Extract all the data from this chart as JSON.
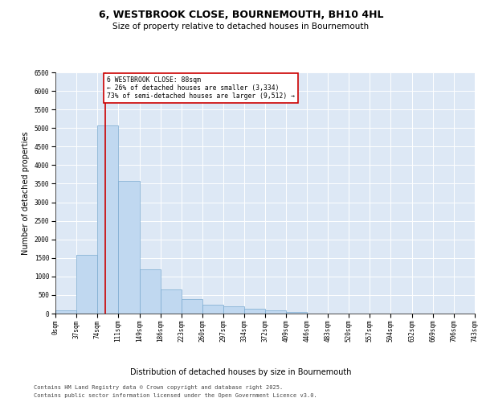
{
  "title1": "6, WESTBROOK CLOSE, BOURNEMOUTH, BH10 4HL",
  "title2": "Size of property relative to detached houses in Bournemouth",
  "xlabel": "Distribution of detached houses by size in Bournemouth",
  "ylabel": "Number of detached properties",
  "bar_values": [
    95,
    1580,
    5080,
    3580,
    1190,
    640,
    385,
    235,
    190,
    140,
    90,
    45,
    0,
    0,
    0,
    0,
    0,
    0,
    0,
    0
  ],
  "bin_edges": [
    0,
    37,
    74,
    111,
    149,
    186,
    223,
    260,
    297,
    334,
    372,
    409,
    446,
    483,
    520,
    557,
    594,
    632,
    669,
    706,
    743
  ],
  "tick_labels": [
    "0sqm",
    "37sqm",
    "74sqm",
    "111sqm",
    "149sqm",
    "186sqm",
    "223sqm",
    "260sqm",
    "297sqm",
    "334sqm",
    "372sqm",
    "409sqm",
    "446sqm",
    "483sqm",
    "520sqm",
    "557sqm",
    "594sqm",
    "632sqm",
    "669sqm",
    "706sqm",
    "743sqm"
  ],
  "vline_x": 88,
  "vline_color": "#cc0000",
  "bar_face_color": "#c0d8f0",
  "bar_edge_color": "#7aaad0",
  "plot_bg_color": "#dde8f5",
  "annotation_text": "6 WESTBROOK CLOSE: 88sqm\n← 26% of detached houses are smaller (3,334)\n73% of semi-detached houses are larger (9,512) →",
  "annotation_box_edgecolor": "#cc0000",
  "ylim": [
    0,
    6500
  ],
  "yticks": [
    0,
    500,
    1000,
    1500,
    2000,
    2500,
    3000,
    3500,
    4000,
    4500,
    5000,
    5500,
    6000,
    6500
  ],
  "footer1": "Contains HM Land Registry data © Crown copyright and database right 2025.",
  "footer2": "Contains public sector information licensed under the Open Government Licence v3.0.",
  "title_fontsize": 9,
  "subtitle_fontsize": 7.5,
  "axis_label_fontsize": 7,
  "tick_fontsize": 5.5,
  "footer_fontsize": 5
}
